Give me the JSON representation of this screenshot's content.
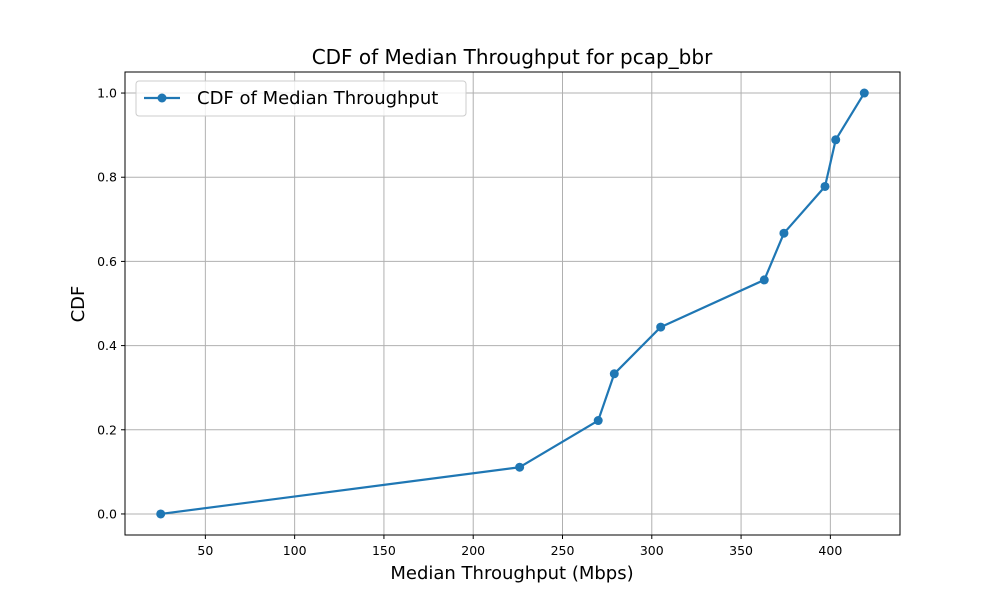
{
  "chart_data": {
    "type": "line",
    "title": "CDF of Median Throughput for pcap_bbr",
    "xlabel": "Median Throughput (Mbps)",
    "ylabel": "CDF",
    "xlim": [
      5,
      439
    ],
    "ylim": [
      -0.05,
      1.05
    ],
    "xticks": [
      50,
      100,
      150,
      200,
      250,
      300,
      350,
      400
    ],
    "yticks": [
      0.0,
      0.2,
      0.4,
      0.6,
      0.8,
      1.0
    ],
    "xtick_labels": [
      "50",
      "100",
      "150",
      "200",
      "250",
      "300",
      "350",
      "400"
    ],
    "ytick_labels": [
      "0.0",
      "0.2",
      "0.4",
      "0.6",
      "0.8",
      "1.0"
    ],
    "grid": true,
    "legend_position": "upper-left",
    "series": [
      {
        "name": "CDF of Median Throughput",
        "color": "#1f77b4",
        "marker": "circle",
        "x": [
          25,
          226,
          270,
          279,
          305,
          363,
          374,
          397,
          403,
          419
        ],
        "y": [
          0.0,
          0.111,
          0.222,
          0.333,
          0.444,
          0.556,
          0.667,
          0.778,
          0.889,
          1.0
        ]
      }
    ]
  }
}
